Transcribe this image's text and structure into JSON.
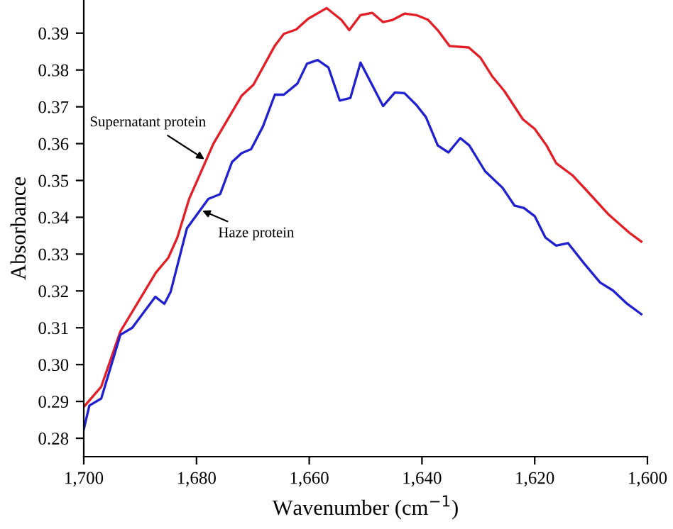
{
  "chart_data": {
    "type": "line",
    "xlabel": "Wavenumber (cm$^{−1}$)",
    "ylabel": "Absorbance",
    "xlim": [
      1700,
      1600
    ],
    "ylim": [
      0.275,
      0.399
    ],
    "xticks": [
      {
        "value": 1700,
        "label": "1,700"
      },
      {
        "value": 1680,
        "label": "1,680"
      },
      {
        "value": 1660,
        "label": "1,660"
      },
      {
        "value": 1640,
        "label": "1,640"
      },
      {
        "value": 1620,
        "label": "1,620"
      },
      {
        "value": 1600,
        "label": "1,600"
      }
    ],
    "yticks": [
      0.28,
      0.29,
      {
        "value": 0.3,
        "label": "0.30"
      },
      0.31,
      0.32,
      0.33,
      0.34,
      0.35,
      0.36,
      0.37,
      0.38,
      0.39
    ],
    "grid": false,
    "marker": "none",
    "line_style": "solid",
    "series": [
      {
        "color": "#e41e26",
        "x": [
          1700,
          1696.9,
          1693.5,
          1687.2,
          1685,
          1683.4,
          1681.3,
          1677,
          1672,
          1669.9,
          1666.1,
          1664.5,
          1662.3,
          1660.2,
          1656.9,
          1654.3,
          1652.9,
          1650.9,
          1648.8,
          1646.9,
          1645.2,
          1643.1,
          1641,
          1638.9,
          1637.2,
          1635.1,
          1631.7,
          1629.6,
          1627.5,
          1625.4,
          1622.1,
          1620,
          1617.9,
          1616.2,
          1613.3,
          1610.8,
          1607,
          1603.2,
          1601.1
        ],
        "values": [
          0.2885,
          0.294,
          0.309,
          0.325,
          0.329,
          0.3345,
          0.345,
          0.36,
          0.373,
          0.376,
          0.3866,
          0.3898,
          0.391,
          0.3939,
          0.3968,
          0.3936,
          0.3908,
          0.3949,
          0.3955,
          0.393,
          0.3936,
          0.3953,
          0.3949,
          0.3936,
          0.3908,
          0.3865,
          0.3861,
          0.3833,
          0.3782,
          0.3743,
          0.3666,
          0.364,
          0.3595,
          0.3547,
          0.3514,
          0.3473,
          0.3409,
          0.3358,
          0.3334
        ]
      },
      {
        "color": "#2020d0",
        "x": [
          1700,
          1699,
          1696.9,
          1693.5,
          1691.4,
          1687.3,
          1685.7,
          1684.6,
          1681.7,
          1677.9,
          1675.8,
          1673.7,
          1672,
          1670.3,
          1668.2,
          1666.1,
          1664.5,
          1662.1,
          1660.4,
          1658.5,
          1656.6,
          1654.6,
          1652.7,
          1650.9,
          1646.9,
          1644.8,
          1643.1,
          1641,
          1639.3,
          1637.2,
          1635.3,
          1633.2,
          1631.6,
          1628.8,
          1625.7,
          1623.6,
          1621.9,
          1620,
          1618.1,
          1616.2,
          1614.1,
          1611.2,
          1608.4,
          1606.1,
          1603.6,
          1601.1
        ],
        "values": [
          0.2824,
          0.2889,
          0.2908,
          0.3081,
          0.31,
          0.3184,
          0.3165,
          0.3197,
          0.337,
          0.345,
          0.3463,
          0.355,
          0.3574,
          0.3585,
          0.3647,
          0.3733,
          0.3733,
          0.3763,
          0.3817,
          0.3827,
          0.3807,
          0.3717,
          0.3724,
          0.382,
          0.3702,
          0.3739,
          0.3737,
          0.3705,
          0.3672,
          0.3595,
          0.3576,
          0.3615,
          0.3595,
          0.3525,
          0.348,
          0.3432,
          0.3425,
          0.3403,
          0.3345,
          0.3323,
          0.333,
          0.3274,
          0.3223,
          0.3201,
          0.3165,
          0.3137
        ]
      }
    ],
    "annotations": [
      {
        "text": "Supernatant protein",
        "x": 1678.3,
        "y": 0.3555
      },
      {
        "text": "Haze protein",
        "x": 1679.3,
        "y": 0.342
      }
    ]
  }
}
